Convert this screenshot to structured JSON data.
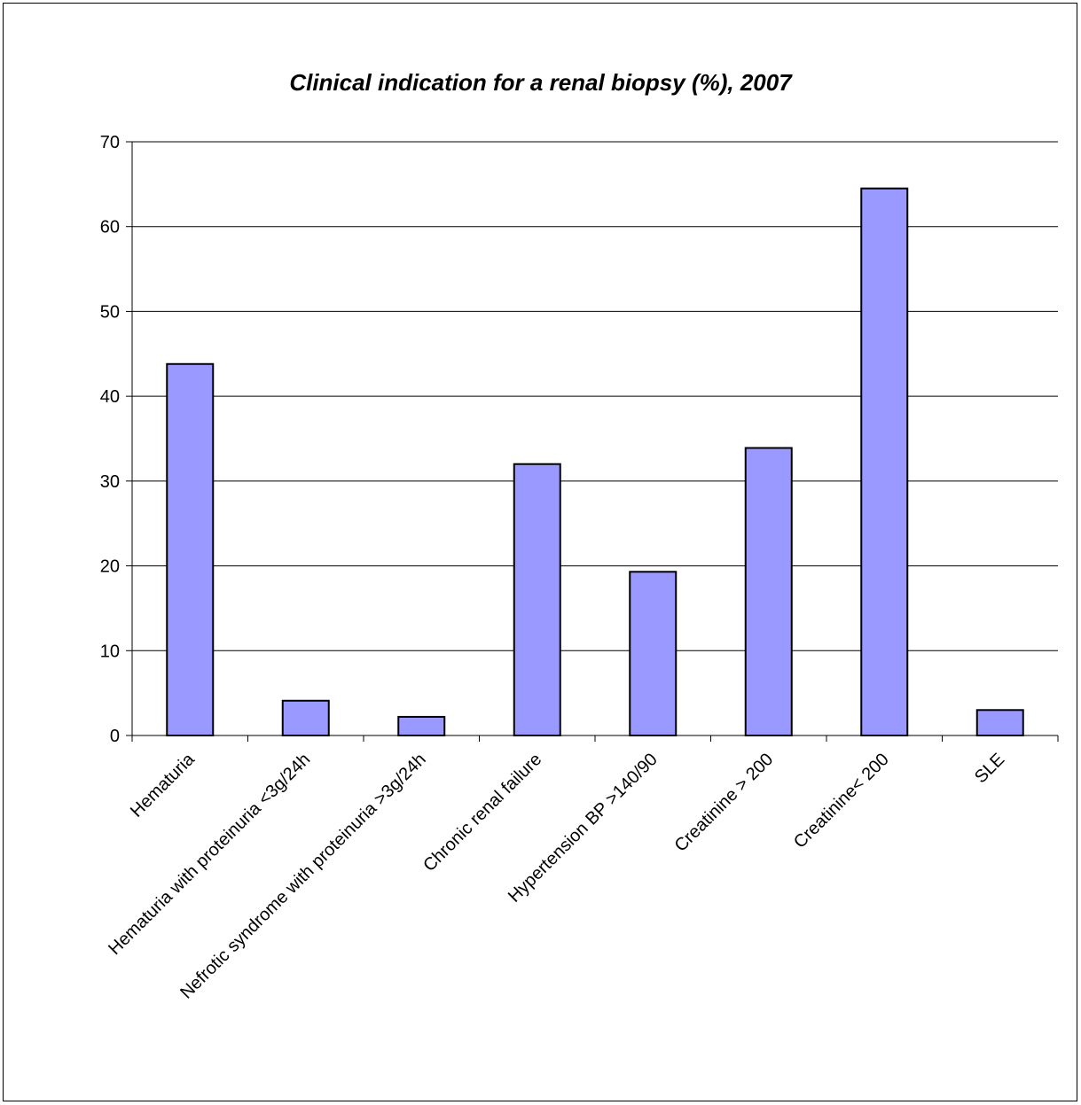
{
  "chart_data": {
    "type": "bar",
    "title": "Clinical indication for a renal biopsy (%), 2007",
    "xlabel": "",
    "ylabel": "",
    "categories": [
      "Hematuria",
      "Hematuria with proteinuria <3g/24h",
      "Nefrotic syndrome with proteinuria >3g/24h",
      "Chronic renal failure",
      "Hypertension BP >140/90",
      "Creatinine > 200",
      "Creatinine< 200",
      "SLE"
    ],
    "values": [
      43.8,
      4.1,
      2.2,
      32.0,
      19.3,
      33.9,
      64.5,
      3.0
    ],
    "ylim": [
      0,
      70
    ],
    "yticks": [
      0,
      10,
      20,
      30,
      40,
      50,
      60,
      70
    ],
    "grid": true,
    "legend": "none",
    "colors": {
      "bar_fill": "#9999ff",
      "bar_stroke": "#000000",
      "grid": "#000000"
    }
  }
}
